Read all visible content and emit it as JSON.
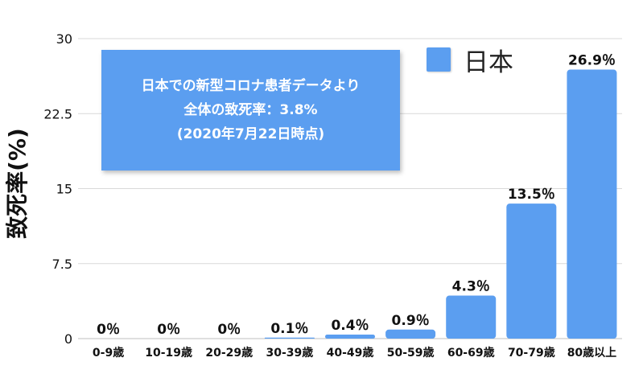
{
  "chart_data": {
    "type": "bar",
    "categories": [
      "0-9歳",
      "10-19歳",
      "20-29歳",
      "30-39歳",
      "40-49歳",
      "50-59歳",
      "60-69歳",
      "70-79歳",
      "80歳以上"
    ],
    "series": [
      {
        "name": "日本",
        "values": [
          0,
          0,
          0,
          0.1,
          0.4,
          0.9,
          4.3,
          13.5,
          26.9
        ],
        "data_labels": [
          "0％",
          "0％",
          "0％",
          "0.1％",
          "0.4％",
          "0.9％",
          "4.3％",
          "13.5％",
          "26.9％"
        ]
      }
    ],
    "ylabel": "致死率(%)",
    "ylim": [
      0,
      30
    ],
    "yticks": [
      0,
      7.5,
      15,
      22.5,
      30
    ],
    "ytick_labels": [
      "0",
      "7.5",
      "15",
      "22.5",
      "30"
    ],
    "grid": true,
    "legend": "top-right",
    "annotation": [
      "日本での新型コロナ患者データより",
      "全体の致死率：3.8%",
      "(2020年7月22日時点)"
    ],
    "colors": {
      "bar": "#5b9ef0",
      "grid": "#d9d9d9",
      "axis": "#bfbfbf",
      "text": "#111111"
    }
  }
}
